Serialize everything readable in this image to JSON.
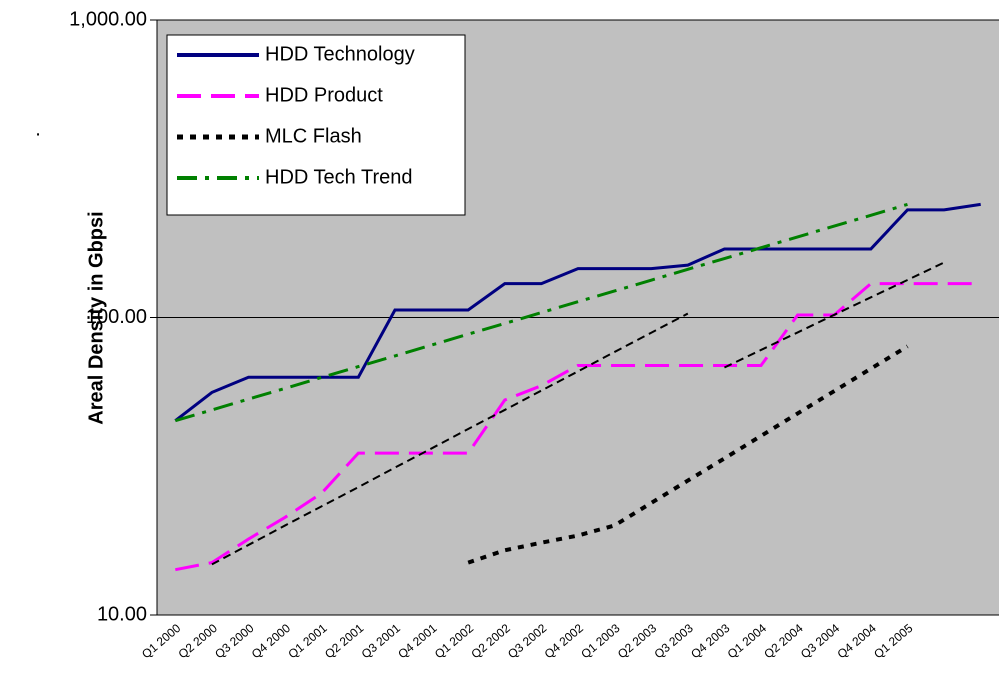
{
  "chart_data": {
    "type": "line",
    "annotation": ".",
    "y_label": "Areal Density in Gbpsi",
    "y_scale": "log",
    "ylim": [
      10,
      1000
    ],
    "yticks": [
      {
        "value": 10,
        "label": "10.00"
      },
      {
        "value": 100,
        "label": "100.00"
      },
      {
        "value": 1000,
        "label": "1,000.00"
      }
    ],
    "grid": true,
    "legend": "top-left",
    "categories": [
      "Q1 2000",
      "Q2 2000",
      "Q3 2000",
      "Q4 2000",
      "Q1 2001",
      "Q2 2001",
      "Q3 2001",
      "Q4 2001",
      "Q1 2002",
      "Q2 2002",
      "Q3 2002",
      "Q4 2002",
      "Q1 2003",
      "Q2 2003",
      "Q3 2003",
      "Q4 2003",
      "Q1 2004",
      "Q2 2004",
      "Q3 2004",
      "Q4 2004",
      "Q1 2005",
      null,
      null
    ],
    "series": [
      {
        "name": "HDD Technology",
        "color": "#000080",
        "style": "solid",
        "values": [
          45,
          56,
          63,
          63,
          63,
          63,
          106,
          106,
          106,
          130,
          130,
          146,
          146,
          146,
          150,
          170,
          170,
          170,
          170,
          170,
          230,
          230,
          240
        ]
      },
      {
        "name": "HDD Product",
        "color": "#ff00ff",
        "style": "dashed",
        "values": [
          14.2,
          15,
          18,
          21.3,
          25.7,
          35,
          35,
          35,
          35,
          52.8,
          59,
          69,
          69,
          69,
          69,
          69,
          69,
          102,
          102,
          130,
          130,
          130,
          130
        ]
      },
      {
        "name": "MLC Flash",
        "color": "#000000",
        "style": "dotted",
        "values": [
          null,
          null,
          null,
          null,
          null,
          null,
          null,
          null,
          15,
          16.5,
          17.5,
          18.5,
          20,
          23.8,
          28.3,
          33.6,
          40,
          47.6,
          56.6,
          67.3,
          80,
          null,
          null
        ]
      },
      {
        "name": "HDD Tech Trend",
        "color": "#008000",
        "style": "dashdot",
        "values": [
          45,
          48.9,
          53.2,
          57.8,
          62.9,
          68.4,
          74.3,
          80.8,
          87.9,
          95.5,
          103.9,
          113,
          122.8,
          133.5,
          145.2,
          157.8,
          171.6,
          186.6,
          202.9,
          220.6,
          240,
          null,
          null
        ]
      },
      {
        "color": "#000000",
        "style": "thin-dashed",
        "values": [
          null,
          14.8,
          17.2,
          20,
          23.2,
          26.9,
          31.3,
          36.3,
          42.2,
          48.9,
          56.8,
          65.9,
          76.6,
          88.9,
          103.1,
          null,
          null,
          null,
          null,
          null,
          null,
          null,
          null
        ]
      },
      {
        "color": "#000000",
        "style": "thin-dashed",
        "values": [
          null,
          null,
          null,
          null,
          null,
          null,
          null,
          null,
          null,
          null,
          null,
          null,
          null,
          null,
          null,
          67.9,
          77.8,
          89.1,
          102.1,
          116.9,
          133.7,
          153.1,
          null
        ]
      }
    ]
  }
}
